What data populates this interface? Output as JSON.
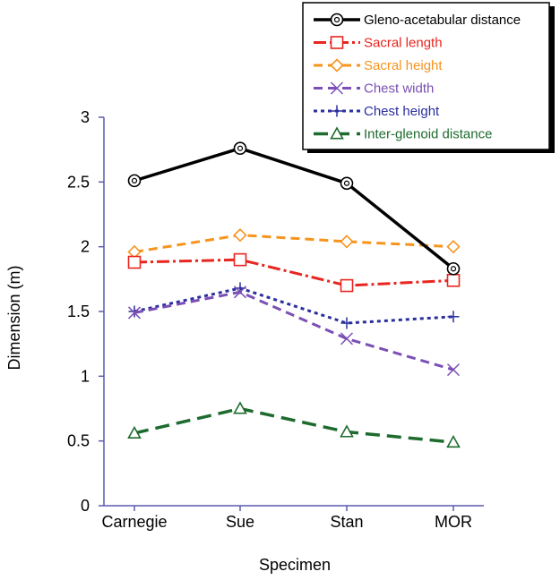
{
  "chart_data": {
    "type": "line",
    "title": "",
    "xlabel": "Specimen",
    "ylabel": "Dimension (m)",
    "categories": [
      "Carnegie",
      "Sue",
      "Stan",
      "MOR"
    ],
    "ylim": [
      0,
      3
    ],
    "yticks": [
      "0",
      "0.5",
      "1",
      "1.5",
      "2",
      "2.5",
      "3"
    ],
    "grid": false,
    "legend_position": "top-right",
    "series": [
      {
        "name": "Gleno-acetabular distance",
        "values": [
          2.51,
          2.76,
          2.49,
          1.83
        ],
        "color": "#000000",
        "marker": "circle",
        "dash": "solid"
      },
      {
        "name": "Sacral length",
        "values": [
          1.88,
          1.9,
          1.7,
          1.74
        ],
        "color": "#e8251e",
        "marker": "square",
        "dash": "dashdot"
      },
      {
        "name": "Sacral height",
        "values": [
          1.96,
          2.09,
          2.04,
          2.0
        ],
        "color": "#f7941d",
        "marker": "diamond",
        "dash": "dash"
      },
      {
        "name": "Chest width",
        "values": [
          1.49,
          1.65,
          1.29,
          1.05
        ],
        "color": "#7b4fb5",
        "marker": "x",
        "dash": "dash"
      },
      {
        "name": "Chest height",
        "values": [
          1.5,
          1.68,
          1.41,
          1.46
        ],
        "color": "#2b2f9e",
        "marker": "plus",
        "dash": "dot"
      },
      {
        "name": "Inter-glenoid distance",
        "values": [
          0.56,
          0.75,
          0.57,
          0.49
        ],
        "color": "#1e6b2e",
        "marker": "triangle",
        "dash": "longdash"
      }
    ]
  }
}
